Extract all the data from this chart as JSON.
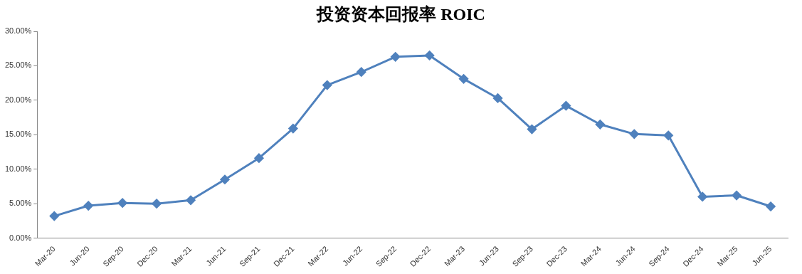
{
  "chart_data": {
    "type": "line",
    "title": "投资资本回报率 ROIC",
    "categories": [
      "Mar-20",
      "Jun-20",
      "Sep-20",
      "Dec-20",
      "Mar-21",
      "Jun-21",
      "Sep-21",
      "Dec-21",
      "Mar-22",
      "Jun-22",
      "Sep-22",
      "Dec-22",
      "Mar-23",
      "Jun-23",
      "Sep-23",
      "Dec-23",
      "Mar-24",
      "Jun-24",
      "Sep-24",
      "Dec-24",
      "Mar-25",
      "Jun-25"
    ],
    "series": [
      {
        "color": "#4f81bd",
        "values": [
          3.2,
          4.7,
          5.1,
          5.0,
          5.5,
          8.5,
          11.6,
          15.9,
          22.2,
          24.1,
          26.3,
          26.5,
          23.1,
          20.3,
          15.8,
          19.2,
          16.5,
          15.1,
          14.9,
          6.0,
          6.2,
          4.6
        ]
      }
    ],
    "ylim": [
      0,
      30
    ],
    "yticks": [
      {
        "value": 0,
        "label": "0.00%"
      },
      {
        "value": 5,
        "label": "5.00%"
      },
      {
        "value": 10,
        "label": "10.00%"
      },
      {
        "value": 15,
        "label": "15.00%"
      },
      {
        "value": 20,
        "label": "20.00%"
      },
      {
        "value": 25,
        "label": "25.00%"
      },
      {
        "value": 30,
        "label": "30.00%"
      }
    ],
    "grid": false,
    "legend": false,
    "marker": "diamond",
    "line_style": "solid"
  }
}
